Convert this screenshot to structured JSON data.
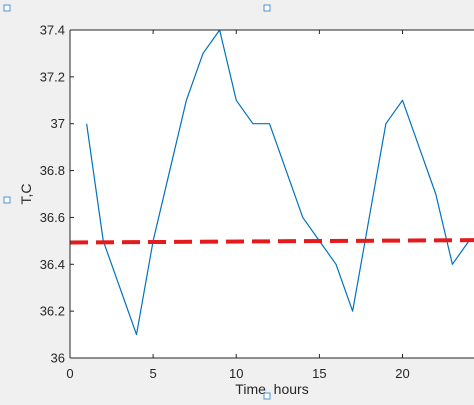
{
  "chart_data": {
    "type": "line",
    "title": "",
    "xlabel": "Time, hours",
    "ylabel": "T,C",
    "xlim": [
      0,
      24.3
    ],
    "ylim": [
      36,
      37.4
    ],
    "x_ticks": [
      0,
      5,
      10,
      15,
      20
    ],
    "x_tick_labels": [
      "0",
      "5",
      "10",
      "15",
      "20"
    ],
    "y_ticks": [
      36,
      36.2,
      36.4,
      36.6,
      36.8,
      37,
      37.2,
      37.4
    ],
    "y_tick_labels": [
      "36",
      "36.2",
      "36.4",
      "36.6",
      "36.8",
      "37",
      "37.2",
      "37.4"
    ],
    "grid": false,
    "series": [
      {
        "style": "solid",
        "color": "#0072bd",
        "x": [
          1,
          2,
          3,
          4,
          5,
          6,
          7,
          8,
          9,
          10,
          11,
          12,
          13,
          14,
          15,
          16,
          17,
          18,
          19,
          20,
          21,
          22,
          23,
          24
        ],
        "y": [
          37.0,
          36.5,
          36.3,
          36.1,
          36.5,
          36.8,
          37.1,
          37.3,
          37.4,
          37.1,
          37.0,
          37.0,
          36.8,
          36.6,
          36.5,
          36.4,
          36.2,
          36.6,
          37.0,
          37.1,
          36.9,
          36.7,
          36.4,
          36.5
        ]
      },
      {
        "style": "dashed",
        "color": "#e41a1c",
        "x": [
          0,
          24.3
        ],
        "y": [
          36.493,
          36.503
        ]
      }
    ]
  }
}
